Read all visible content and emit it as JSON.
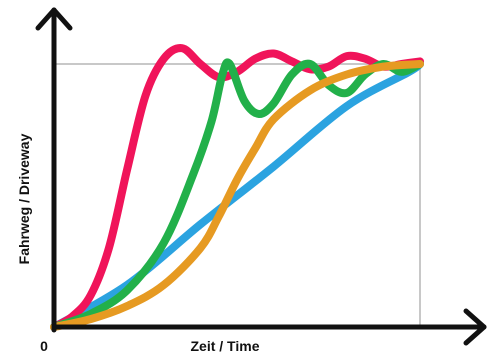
{
  "chart_data": {
    "type": "line",
    "title": "",
    "xlabel": "Zeit / Time",
    "ylabel": "Fahrweg / Driveway",
    "origin_label": "0",
    "xlim": [
      0,
      1
    ],
    "ylim": [
      0,
      1
    ],
    "target_level": 1.0,
    "grid": false,
    "legend": "none",
    "series": [
      {
        "color": "#2ba3e0",
        "points": [
          [
            0,
            0
          ],
          [
            0.2,
            0.16
          ],
          [
            0.4,
            0.39
          ],
          [
            0.6,
            0.61
          ],
          [
            0.8,
            0.84
          ],
          [
            0.97,
            0.97
          ],
          [
            1,
            1
          ]
        ]
      },
      {
        "color": "#f0145a",
        "points": [
          [
            0,
            0
          ],
          [
            0.05,
            0.04
          ],
          [
            0.1,
            0.12
          ],
          [
            0.15,
            0.3
          ],
          [
            0.2,
            0.6
          ],
          [
            0.25,
            0.88
          ],
          [
            0.3,
            1.02
          ],
          [
            0.35,
            1.06
          ],
          [
            0.4,
            1.0
          ],
          [
            0.45,
            0.95
          ],
          [
            0.5,
            0.97
          ],
          [
            0.55,
            1.02
          ],
          [
            0.6,
            1.04
          ],
          [
            0.65,
            1.01
          ],
          [
            0.7,
            0.98
          ],
          [
            0.75,
            0.99
          ],
          [
            0.8,
            1.03
          ],
          [
            0.85,
            1.02
          ],
          [
            0.9,
            0.99
          ],
          [
            0.95,
            1.0
          ],
          [
            1,
            1.01
          ]
        ]
      },
      {
        "color": "#22b04a",
        "points": [
          [
            0,
            0
          ],
          [
            0.1,
            0.05
          ],
          [
            0.2,
            0.14
          ],
          [
            0.3,
            0.32
          ],
          [
            0.38,
            0.58
          ],
          [
            0.43,
            0.78
          ],
          [
            0.46,
            0.96
          ],
          [
            0.48,
            1.0
          ],
          [
            0.52,
            0.86
          ],
          [
            0.56,
            0.81
          ],
          [
            0.6,
            0.85
          ],
          [
            0.65,
            0.96
          ],
          [
            0.7,
            1.0
          ],
          [
            0.75,
            0.92
          ],
          [
            0.8,
            0.89
          ],
          [
            0.85,
            0.96
          ],
          [
            0.9,
            1.0
          ],
          [
            0.95,
            0.97
          ],
          [
            1,
            1.0
          ]
        ]
      },
      {
        "color": "#e69a22",
        "points": [
          [
            0,
            0
          ],
          [
            0.1,
            0.03
          ],
          [
            0.2,
            0.08
          ],
          [
            0.3,
            0.16
          ],
          [
            0.4,
            0.3
          ],
          [
            0.45,
            0.42
          ],
          [
            0.5,
            0.56
          ],
          [
            0.55,
            0.68
          ],
          [
            0.6,
            0.79
          ],
          [
            0.7,
            0.9
          ],
          [
            0.8,
            0.96
          ],
          [
            0.9,
            0.99
          ],
          [
            1,
            1.0
          ]
        ]
      }
    ]
  }
}
